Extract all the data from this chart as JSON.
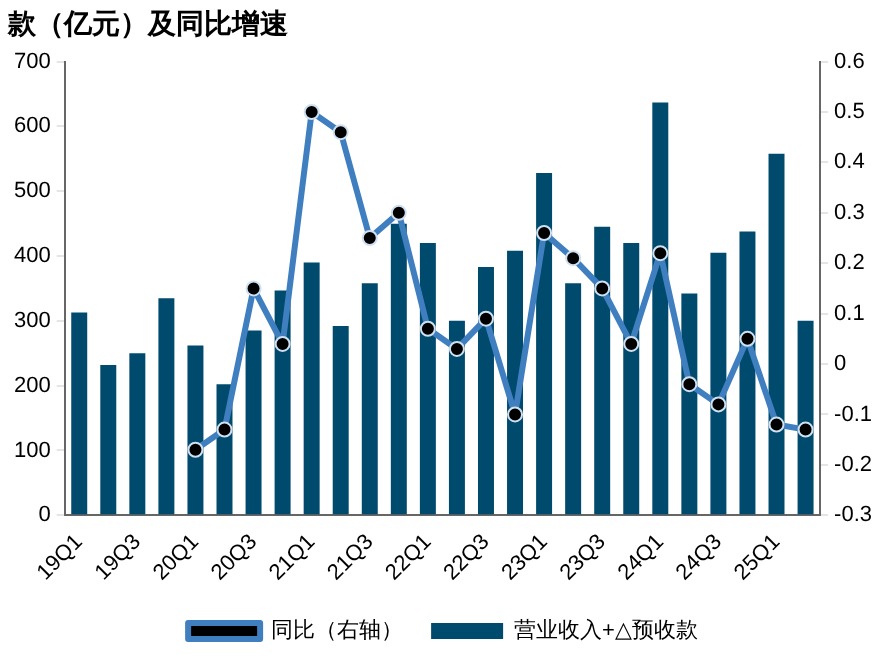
{
  "chart_data": {
    "type": "bar",
    "title": "款（亿元）及同比增速",
    "categories": [
      "19Q1",
      null,
      "19Q3",
      null,
      "20Q1",
      null,
      "20Q3",
      null,
      "21Q1",
      null,
      "21Q3",
      null,
      "22Q1",
      null,
      "22Q3",
      null,
      "23Q1",
      null,
      "23Q3",
      null,
      "24Q1",
      null,
      "24Q3",
      null,
      "25Q1",
      null
    ],
    "series": [
      {
        "name": "营业收入+△预收款",
        "color": "#004a6e",
        "values": [
          313,
          232,
          250,
          335,
          262,
          202,
          285,
          347,
          390,
          292,
          358,
          450,
          420,
          300,
          383,
          408,
          528,
          358,
          445,
          420,
          637,
          342,
          405,
          438,
          558,
          300
        ]
      },
      {
        "name": "同比（右轴）",
        "type": "line",
        "axis": "y2",
        "color": "#3f7fc0",
        "values": [
          null,
          null,
          null,
          null,
          -0.17,
          -0.13,
          0.15,
          0.04,
          0.5,
          0.46,
          0.25,
          0.3,
          0.07,
          0.03,
          0.09,
          -0.1,
          0.26,
          0.21,
          0.15,
          0.04,
          0.22,
          -0.04,
          -0.08,
          0.05,
          -0.12,
          -0.13
        ]
      }
    ],
    "ylim": [
      0,
      700
    ],
    "yticks": [
      0,
      100,
      200,
      300,
      400,
      500,
      600,
      700
    ],
    "y2lim": [
      -0.3,
      0.6
    ],
    "y2ticks": [
      -0.3,
      -0.2,
      -0.1,
      0,
      0.1,
      0.2,
      0.3,
      0.4,
      0.5,
      0.6
    ],
    "grid": false,
    "legend": "bottom",
    "marker": "circle",
    "line_style": "solid"
  }
}
